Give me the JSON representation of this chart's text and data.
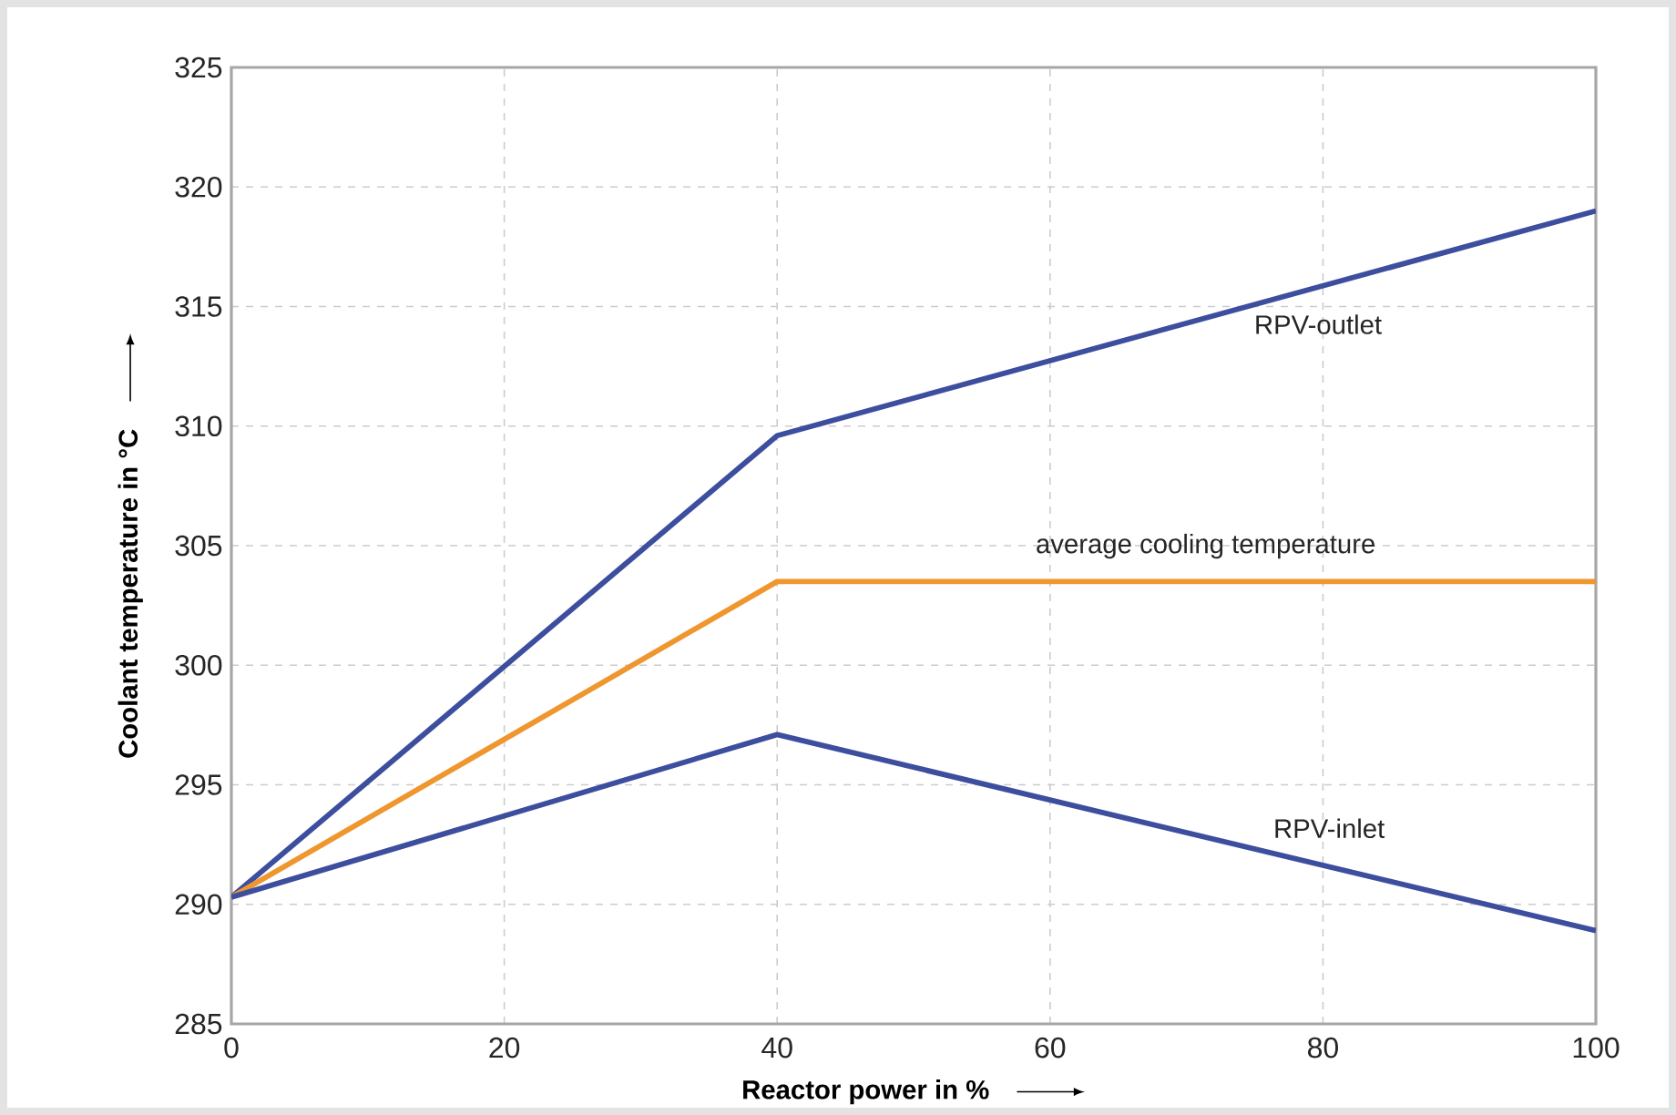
{
  "chart_data": {
    "type": "line",
    "xlabel": "Reactor power in %",
    "ylabel": "Coolant temperature in °C",
    "x": [
      0,
      40,
      100
    ],
    "series": [
      {
        "name": "RPV-outlet",
        "color": "#3d4e9e",
        "values": [
          290.3,
          309.6,
          319.0
        ]
      },
      {
        "name": "average cooling temperature",
        "color": "#ef962f",
        "values": [
          290.3,
          303.5,
          303.5
        ]
      },
      {
        "name": "RPV-inlet",
        "color": "#3d4e9e",
        "values": [
          290.3,
          297.1,
          288.9
        ]
      }
    ],
    "xlim": [
      0,
      100
    ],
    "ylim": [
      285,
      325
    ],
    "xticks": [
      0,
      20,
      40,
      60,
      80,
      100
    ],
    "yticks": [
      285,
      290,
      295,
      300,
      305,
      310,
      315,
      320,
      325
    ],
    "grid": true,
    "marker": "none",
    "line_style": "solid"
  }
}
